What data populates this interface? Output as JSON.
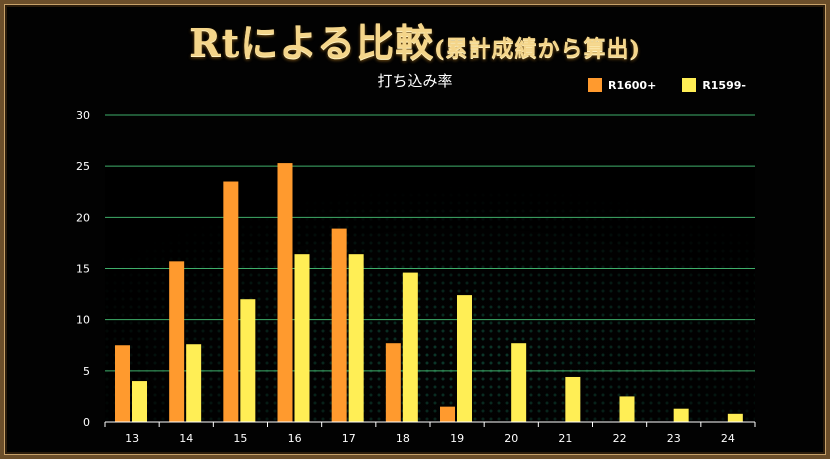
{
  "title_main": "Rtによる比較",
  "title_paren": "(累計成績から算出)",
  "chart_data": {
    "type": "bar",
    "subtitle": "打ち込み率",
    "categories": [
      "13",
      "14",
      "15",
      "16",
      "17",
      "18",
      "19",
      "20",
      "21",
      "22",
      "23",
      "24"
    ],
    "series": [
      {
        "name": "R1600+",
        "color": "#ff9a2e",
        "values": [
          7.5,
          15.7,
          23.5,
          25.3,
          18.9,
          7.7,
          1.5,
          0,
          0,
          0,
          0,
          0
        ]
      },
      {
        "name": "R1599-",
        "color": "#ffee55",
        "values": [
          4.0,
          7.6,
          12.0,
          16.4,
          16.4,
          14.6,
          12.4,
          7.7,
          4.4,
          2.5,
          1.3,
          0.8
        ]
      }
    ],
    "ylim": [
      0,
      30
    ],
    "yticks": [
      0,
      5,
      10,
      15,
      20,
      25,
      30
    ],
    "grid": true,
    "legend_position": "top-right",
    "grid_color": "#3fae6a"
  }
}
